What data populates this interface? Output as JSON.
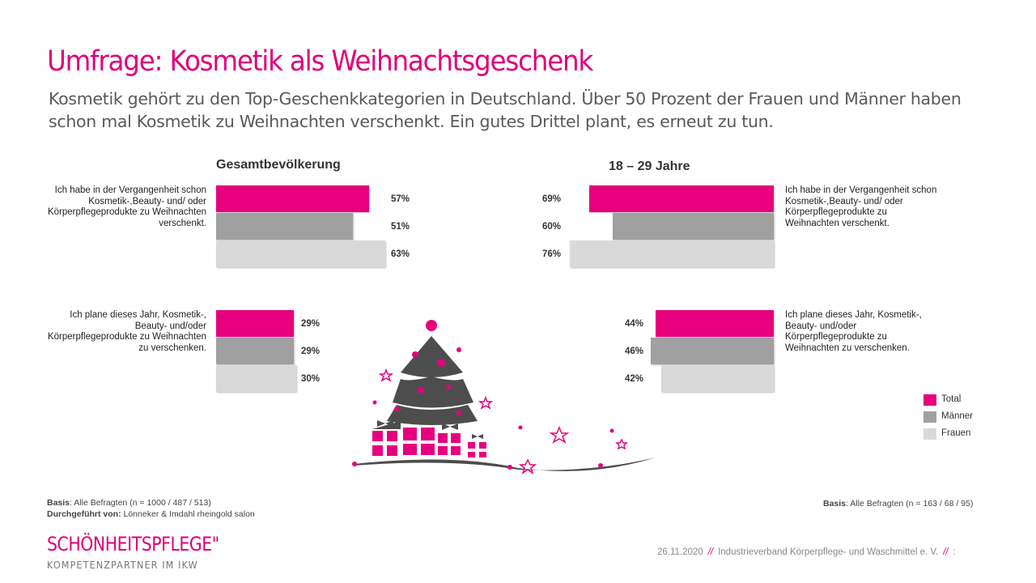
{
  "title": "Umfrage: Kosmetik als Weihnachtsgeschenk",
  "subtitle": "Kosmetik gehört zu den Top-Geschenkkategorien in Deutschland. Über 50 Prozent der Frauen und Männer haben schon mal Kosmetik zu Weihnachten verschenkt. Ein gutes Drittel plant, es erneut zu tun.",
  "colors": {
    "Total": "#e6007e",
    "Männer": "#a0a0a0",
    "Frauen": "#d9d9d9",
    "accent": "#e0007a"
  },
  "chart_data": [
    {
      "type": "bar",
      "orientation": "horizontal",
      "title": "Gesamtbevölkerung",
      "categories": [
        "Ich habe in der Vergangenheit schon Kosmetik-,Beauty- und/ oder Körperpflegeprodukte zu Weihnachten verschenkt.",
        "Ich plane dieses Jahr, Kosmetik-, Beauty- und/oder Körperpflegeprodukte zu Weihnachten zu verschenken."
      ],
      "series": [
        {
          "name": "Total",
          "values": [
            57,
            29
          ]
        },
        {
          "name": "Männer",
          "values": [
            51,
            29
          ]
        },
        {
          "name": "Frauen",
          "values": [
            63,
            30
          ]
        }
      ],
      "unit": "%"
    },
    {
      "type": "bar",
      "orientation": "horizontal",
      "title": "18 – 29 Jahre",
      "categories": [
        "Ich habe in der Vergangenheit schon Kosmetik-,Beauty- und/ oder Körperpflegeprodukte zu Weihnachten verschenkt.",
        "Ich plane dieses Jahr, Kosmetik-, Beauty- und/oder Körperpflegeprodukte zu Weihnachten zu verschenken."
      ],
      "series": [
        {
          "name": "Total",
          "values": [
            69,
            44
          ]
        },
        {
          "name": "Männer",
          "values": [
            60,
            46
          ]
        },
        {
          "name": "Frauen",
          "values": [
            76,
            42
          ]
        }
      ],
      "unit": "%"
    }
  ],
  "legend": [
    "Total",
    "Männer",
    "Frauen"
  ],
  "notes": {
    "left_basis_label": "Basis",
    "left_basis_text": ": Alle Befragten (n = 1000 / 487 / 513)",
    "conducted_label": "Durchgeführt von:",
    "conducted_text": " Lönneker & Imdahl rheingold salon",
    "right_basis_label": "Basis",
    "right_basis_text": ": Alle Befragten (n = 163 / 68 / 95)"
  },
  "brand": {
    "name": "SCHÖNHEITSPFLEGE\"",
    "sub": "KOMPETENZPARTNER IM IKW"
  },
  "footer": {
    "date": "26.11.2020",
    "sep": "//",
    "org": "Industrieverband Körperpflege- und Waschmittel e. V.",
    "page": ":"
  }
}
